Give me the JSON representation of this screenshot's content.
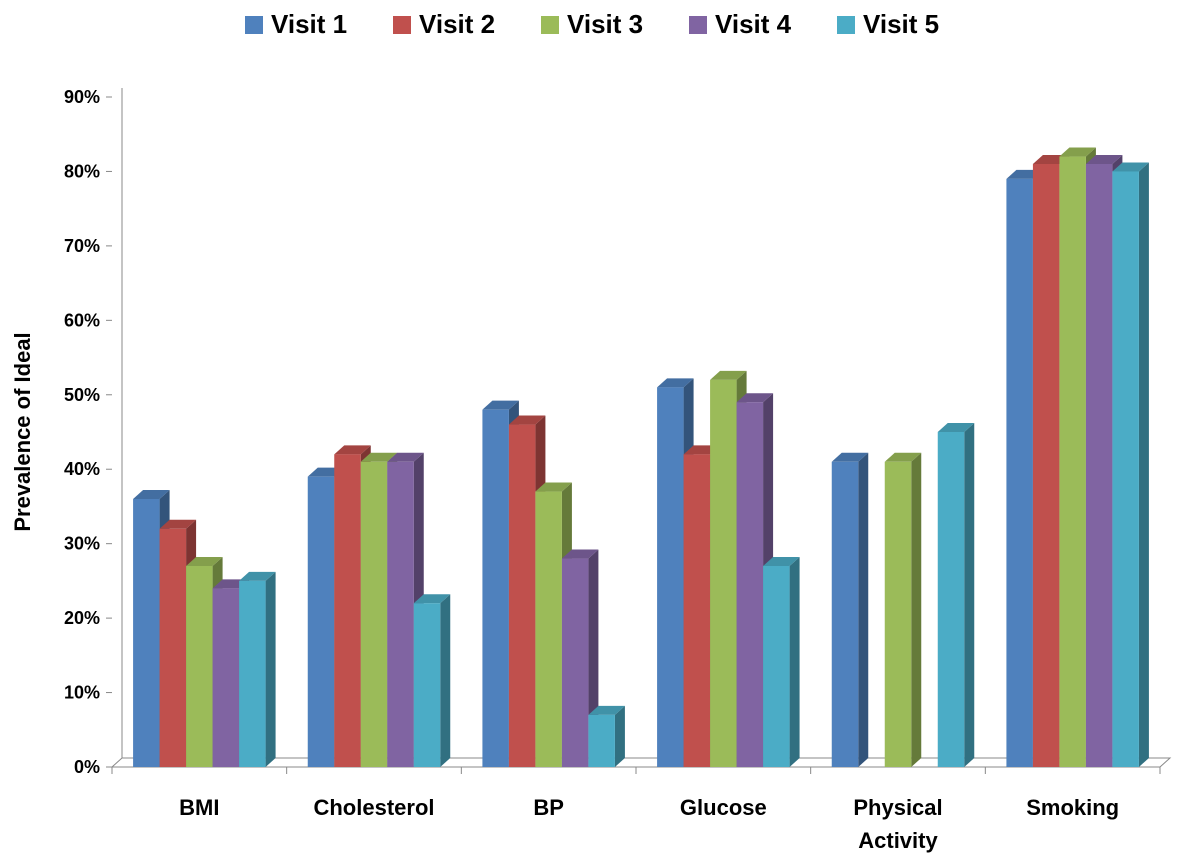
{
  "chart_data": {
    "type": "bar",
    "title": "",
    "xlabel": "",
    "ylabel": "Prevalence of Ideal",
    "ylim": [
      0,
      90
    ],
    "y_ticks": [
      "0%",
      "10%",
      "20%",
      "30%",
      "40%",
      "50%",
      "60%",
      "70%",
      "80%",
      "90%"
    ],
    "legend_position": "top",
    "grid": false,
    "style": "3d-clustered-column",
    "categories": [
      [
        "BMI"
      ],
      [
        "Cholesterol"
      ],
      [
        "BP"
      ],
      [
        "Glucose"
      ],
      [
        "Physical",
        "Activity"
      ],
      [
        "Smoking"
      ]
    ],
    "series": [
      {
        "name": "Visit 1",
        "color": "#4F81BD",
        "values": [
          36,
          39,
          48,
          51,
          41,
          79
        ]
      },
      {
        "name": "Visit 2",
        "color": "#C0504D",
        "values": [
          32,
          42,
          46,
          42,
          null,
          81
        ]
      },
      {
        "name": "Visit 3",
        "color": "#9BBB59",
        "values": [
          27,
          41,
          37,
          52,
          41,
          82
        ]
      },
      {
        "name": "Visit 4",
        "color": "#8064A2",
        "values": [
          24,
          41,
          28,
          49,
          null,
          81
        ]
      },
      {
        "name": "Visit 5",
        "color": "#4BACC6",
        "values": [
          25,
          22,
          7,
          27,
          45,
          80
        ]
      }
    ]
  }
}
